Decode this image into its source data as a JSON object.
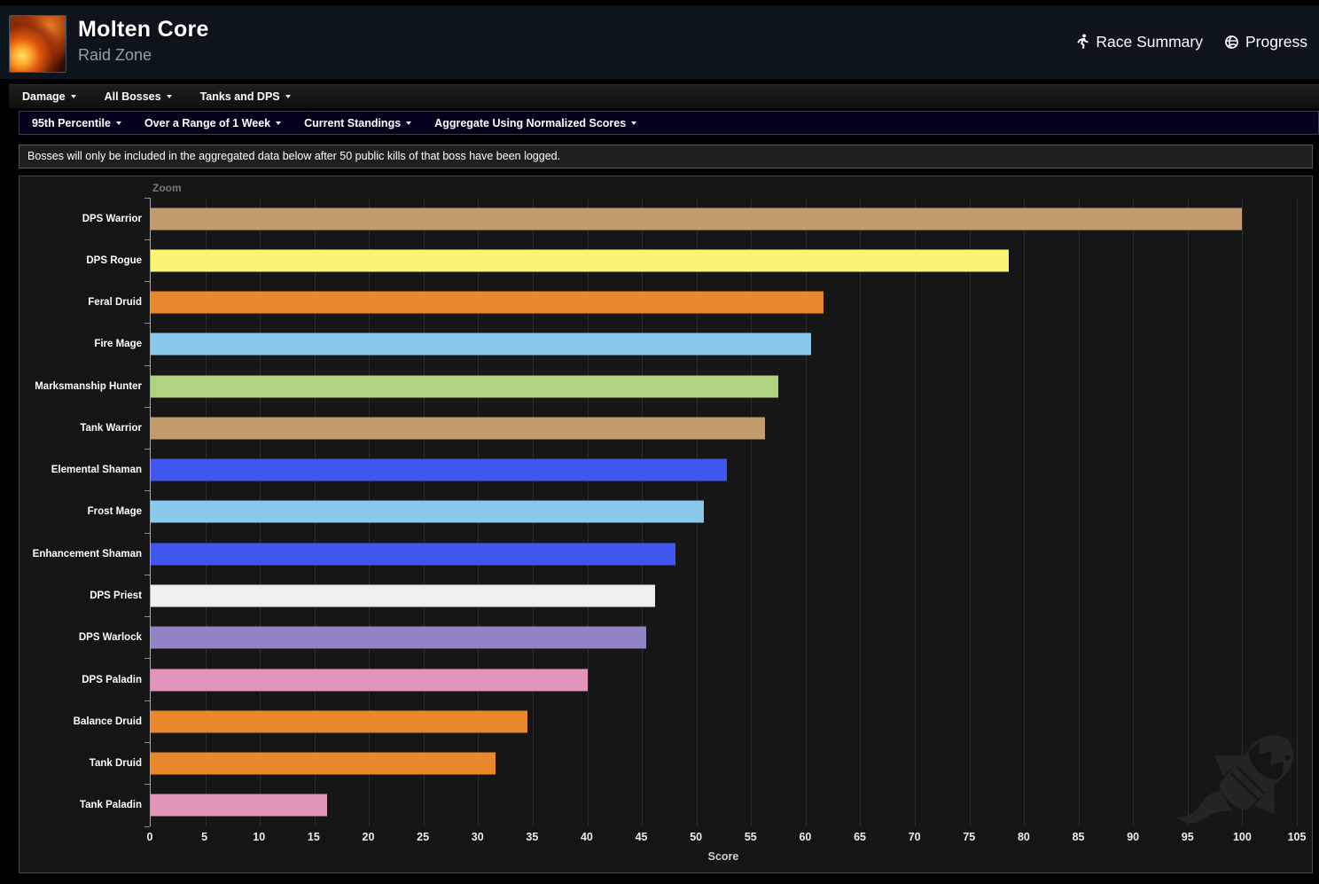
{
  "header": {
    "title": "Molten Core",
    "subtitle": "Raid Zone",
    "links": [
      {
        "label": "Race Summary",
        "icon": "runner-icon"
      },
      {
        "label": "Progress",
        "icon": "globe-icon"
      }
    ]
  },
  "filters": {
    "primary": [
      "Damage",
      "All Bosses",
      "Tanks and DPS"
    ],
    "secondary": [
      "95th Percentile",
      "Over a Range of 1 Week",
      "Current Standings",
      "Aggregate Using Normalized Scores"
    ]
  },
  "notice": {
    "text": "Bosses will only be included in the aggregated data below after 50 public kills of that boss have been logged."
  },
  "chart": {
    "zoom_label": "Zoom"
  },
  "chart_data": {
    "type": "bar",
    "orientation": "horizontal",
    "title": "",
    "xlabel": "Score",
    "ylabel": "",
    "xlim": [
      0,
      105
    ],
    "tick_step": 5,
    "grid": true,
    "legend": false,
    "categories": [
      "DPS Warrior",
      "DPS Rogue",
      "Feral Druid",
      "Fire Mage",
      "Marksmanship Hunter",
      "Tank Warrior",
      "Elemental Shaman",
      "Frost Mage",
      "Enhancement Shaman",
      "DPS Priest",
      "DPS Warlock",
      "DPS Paladin",
      "Balance Druid",
      "Tank Druid",
      "Tank Paladin"
    ],
    "values": [
      100,
      78.6,
      61.6,
      60.5,
      57.5,
      56.3,
      52.8,
      50.7,
      48.1,
      46.2,
      45.4,
      40.0,
      34.5,
      31.6,
      16.2
    ],
    "colors": [
      "#C19C6E",
      "#FAF473",
      "#E8872B",
      "#8AC8EC",
      "#AFD37E",
      "#C19C6E",
      "#4156F1",
      "#8AC8EC",
      "#4156F1",
      "#EFEFEF",
      "#9183C6",
      "#E295B8",
      "#E8872B",
      "#E8872B",
      "#E295B8"
    ]
  }
}
